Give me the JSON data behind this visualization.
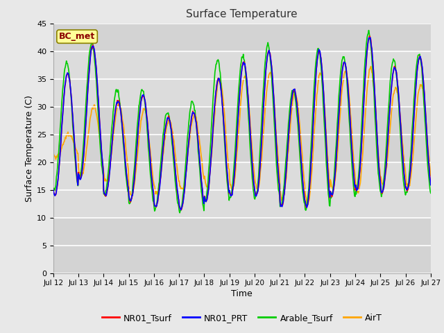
{
  "title": "Surface Temperature",
  "xlabel": "Time",
  "ylabel": "Surface Temperature (C)",
  "ylim": [
    0,
    45
  ],
  "yticks": [
    0,
    5,
    10,
    15,
    20,
    25,
    30,
    35,
    40,
    45
  ],
  "annotation_text": "BC_met",
  "annotation_color": "#8B0000",
  "annotation_bg": "#FFFF99",
  "line_colors": {
    "NR01_Tsurf": "#FF0000",
    "NR01_PRT": "#0000FF",
    "Arable_Tsurf": "#00CC00",
    "AirT": "#FFA500"
  },
  "line_width": 1.2,
  "fig_bg_color": "#E8E8E8",
  "plot_bg_light": "#EBEBEB",
  "plot_bg_dark": "#D8D8D8",
  "start_day": 12,
  "end_day": 27,
  "num_points": 720
}
